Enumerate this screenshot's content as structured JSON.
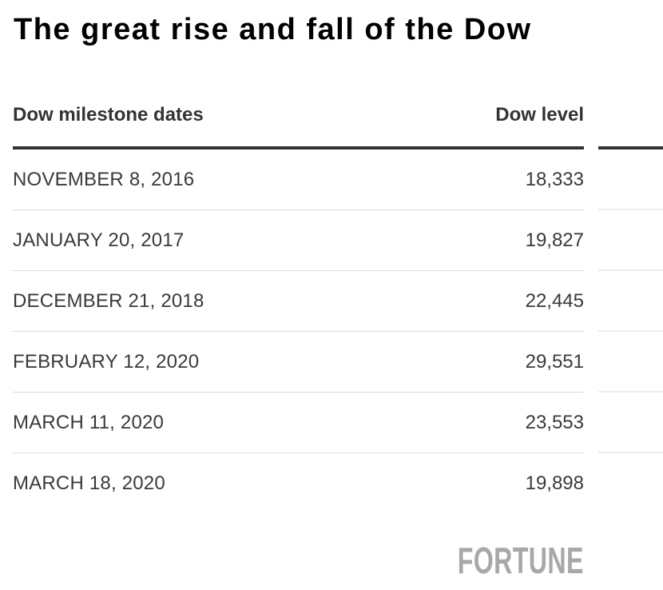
{
  "title": "The great rise and fall of the Dow",
  "table": {
    "columns": {
      "dates_header": "Dow milestone dates",
      "level_header": "Dow level"
    },
    "rows": [
      {
        "date": "NOVEMBER 8, 2016",
        "level": "18,333"
      },
      {
        "date": "JANUARY 20, 2017",
        "level": "19,827"
      },
      {
        "date": "DECEMBER 21, 2018",
        "level": "22,445"
      },
      {
        "date": "FEBRUARY 12, 2020",
        "level": "29,551"
      },
      {
        "date": "MARCH 11, 2020",
        "level": "23,553"
      },
      {
        "date": "MARCH 18, 2020",
        "level": "19,898"
      }
    ]
  },
  "branding": {
    "logo_text": "FORTUNE"
  },
  "colors": {
    "title": "#000000",
    "header_text": "#333333",
    "rule": "#333333",
    "row_text": "#3a3a3a",
    "separator": "#d9d9d9",
    "separator_right": "#ececec",
    "logo": "#a8a8a8"
  },
  "chart_data": {
    "type": "table",
    "title": "The great rise and fall of the Dow",
    "columns": [
      "Dow milestone dates",
      "Dow level"
    ],
    "rows": [
      [
        "NOVEMBER 8, 2016",
        18333
      ],
      [
        "JANUARY 20, 2017",
        19827
      ],
      [
        "DECEMBER 21, 2018",
        22445
      ],
      [
        "FEBRUARY 12, 2020",
        29551
      ],
      [
        "MARCH 11, 2020",
        23553
      ],
      [
        "MARCH 18, 2020",
        19898
      ]
    ],
    "branding": "FORTUNE",
    "layout": "two-column table, values right-aligned, table continues cropped at right edge"
  }
}
